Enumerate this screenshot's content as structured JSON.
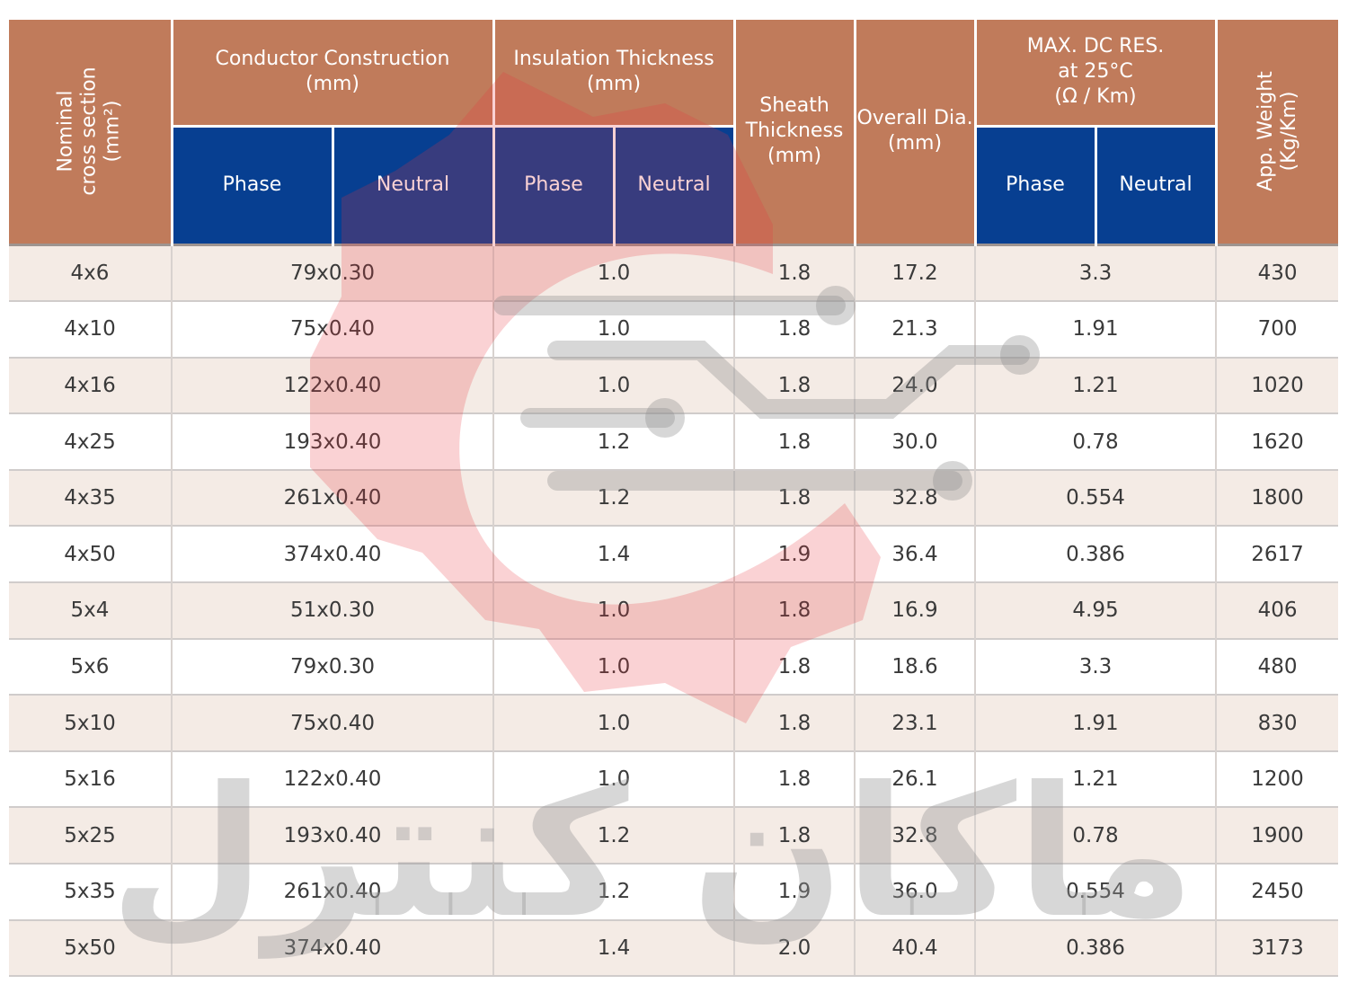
{
  "headers": {
    "nominal": "Nominal\ncross section\n(mm²)",
    "conductor": "Conductor Construction\n(mm)",
    "insulation": "Insulation Thickness\n(mm)",
    "sheath": "Sheath\nThickness\n(mm)",
    "overall": "Overall Dia.\n(mm)",
    "maxdc": "MAX. DC RES.\nat 25°C\n(Ω / Km)",
    "weight": "App. Weight\n(Kg/Km)",
    "phase": "Phase",
    "neutral": "Neutral"
  },
  "rows": [
    {
      "nominal": "4x6",
      "conductor": "79x0.30",
      "insulation": "1.0",
      "sheath": "1.8",
      "overall": "17.2",
      "resistance": "3.3",
      "weight": "430"
    },
    {
      "nominal": "4x10",
      "conductor": "75x0.40",
      "insulation": "1.0",
      "sheath": "1.8",
      "overall": "21.3",
      "resistance": "1.91",
      "weight": "700"
    },
    {
      "nominal": "4x16",
      "conductor": "122x0.40",
      "insulation": "1.0",
      "sheath": "1.8",
      "overall": "24.0",
      "resistance": "1.21",
      "weight": "1020"
    },
    {
      "nominal": "4x25",
      "conductor": "193x0.40",
      "insulation": "1.2",
      "sheath": "1.8",
      "overall": "30.0",
      "resistance": "0.78",
      "weight": "1620"
    },
    {
      "nominal": "4x35",
      "conductor": "261x0.40",
      "insulation": "1.2",
      "sheath": "1.8",
      "overall": "32.8",
      "resistance": "0.554",
      "weight": "1800"
    },
    {
      "nominal": "4x50",
      "conductor": "374x0.40",
      "insulation": "1.4",
      "sheath": "1.9",
      "overall": "36.4",
      "resistance": "0.386",
      "weight": "2617"
    },
    {
      "nominal": "5x4",
      "conductor": "51x0.30",
      "insulation": "1.0",
      "sheath": "1.8",
      "overall": "16.9",
      "resistance": "4.95",
      "weight": "406"
    },
    {
      "nominal": "5x6",
      "conductor": "79x0.30",
      "insulation": "1.0",
      "sheath": "1.8",
      "overall": "18.6",
      "resistance": "3.3",
      "weight": "480"
    },
    {
      "nominal": "5x10",
      "conductor": "75x0.40",
      "insulation": "1.0",
      "sheath": "1.8",
      "overall": "23.1",
      "resistance": "1.91",
      "weight": "830"
    },
    {
      "nominal": "5x16",
      "conductor": "122x0.40",
      "insulation": "1.0",
      "sheath": "1.8",
      "overall": "26.1",
      "resistance": "1.21",
      "weight": "1200"
    },
    {
      "nominal": "5x25",
      "conductor": "193x0.40",
      "insulation": "1.2",
      "sheath": "1.8",
      "overall": "32.8",
      "resistance": "0.78",
      "weight": "1900"
    },
    {
      "nominal": "5x35",
      "conductor": "261x0.40",
      "insulation": "1.2",
      "sheath": "1.9",
      "overall": "36.0",
      "resistance": "0.554",
      "weight": "2450"
    },
    {
      "nominal": "5x50",
      "conductor": "374x0.40",
      "insulation": "1.4",
      "sheath": "2.0",
      "overall": "40.4",
      "resistance": "0.386",
      "weight": "3173"
    }
  ],
  "watermark": {
    "text": "ماکان کنترل"
  },
  "colors": {
    "header_brown": "#c07b5b",
    "header_blue": "#073f91",
    "row_tint": "#f4ebe5",
    "logo_red": "#e9343c",
    "logo_gray": "#8c8c8c"
  }
}
